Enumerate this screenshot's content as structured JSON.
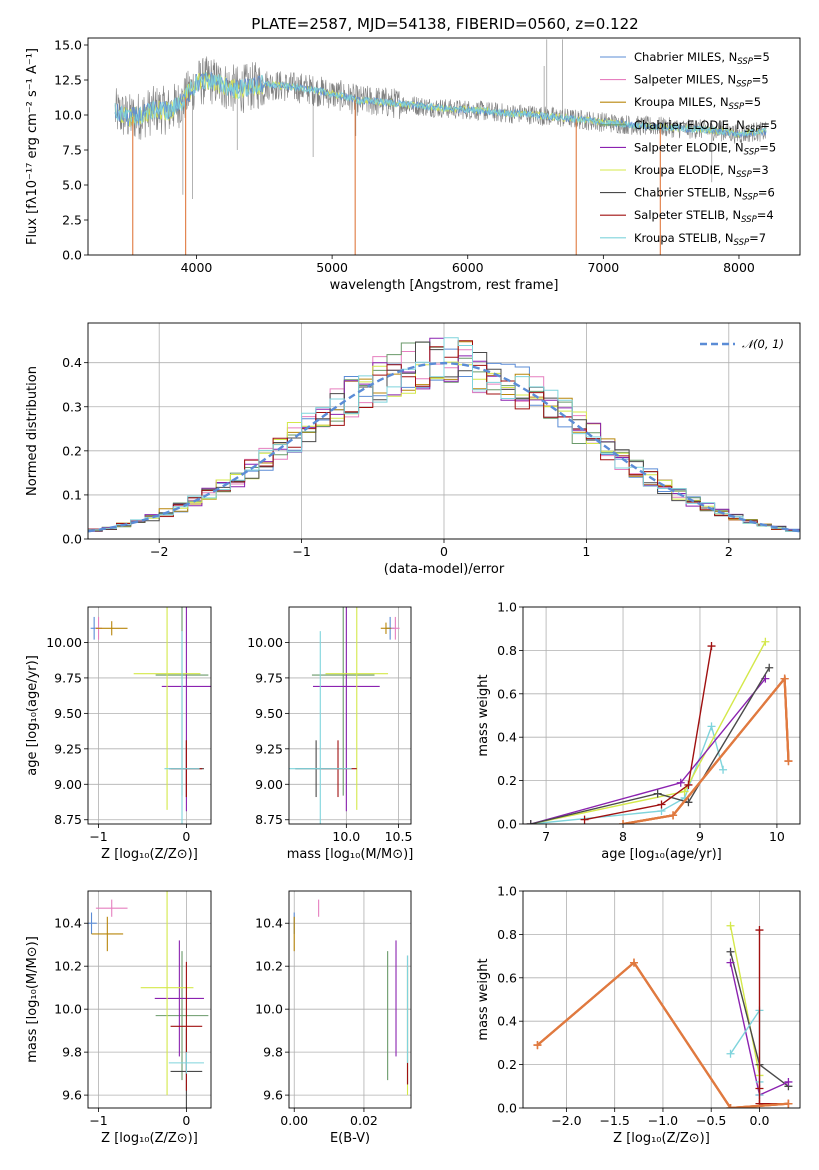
{
  "figure": {
    "title": "PLATE=2587, MJD=54138, FIBERID=0560, z=0.122"
  },
  "colors": {
    "Chabrier MILES": "#5b8cd6",
    "Salpeter MILES": "#e67fbf",
    "Kroupa MILES": "#b8860b",
    "Chabrier ELODIE": "#6a9a6a",
    "Salpeter ELODIE": "#8b22b0",
    "Kroupa ELODIE": "#d4e84a",
    "Chabrier STELIB": "#4a4a4a",
    "Salpeter STELIB": "#a01010",
    "Kroupa STELIB": "#7fd4dc",
    "data": "#808080",
    "orange": "#e07a40",
    "normal": "#5b8cd6"
  },
  "chart_data": [
    {
      "id": "spectrum",
      "type": "line",
      "xlabel": "wavelength [Angstrom, rest frame]",
      "ylabel": "Flux [fλ10⁻¹⁷ erg cm⁻² s⁻¹ A⁻¹]",
      "xlim": [
        3200,
        8450
      ],
      "ylim": [
        0,
        15.5
      ],
      "xticks": [
        4000,
        5000,
        6000,
        7000,
        8000
      ],
      "yticks": [
        0.0,
        2.5,
        5.0,
        7.5,
        10.0,
        12.5,
        15.0
      ],
      "xtick_labels": [
        "4000",
        "5000",
        "6000",
        "7000",
        "8000"
      ],
      "ytick_labels": [
        "0.0",
        "2.5",
        "5.0",
        "7.5",
        "10.0",
        "12.5",
        "15.0"
      ],
      "legend_position": "top-right",
      "legend": [
        {
          "label": "Chabrier MILES, N",
          "sub": "SSP",
          "tail": "=5",
          "color": "#5b8cd6"
        },
        {
          "label": "Salpeter MILES, N",
          "sub": "SSP",
          "tail": "=5",
          "color": "#e67fbf"
        },
        {
          "label": "Kroupa MILES, N",
          "sub": "SSP",
          "tail": "=5",
          "color": "#b8860b"
        },
        {
          "label": "Chabrier ELODIE, N",
          "sub": "SSP",
          "tail": "=5",
          "color": "#6a9a6a"
        },
        {
          "label": "Salpeter ELODIE, N",
          "sub": "SSP",
          "tail": "=5",
          "color": "#8b22b0"
        },
        {
          "label": "Kroupa ELODIE, N",
          "sub": "SSP",
          "tail": "=3",
          "color": "#d4e84a"
        },
        {
          "label": "Chabrier STELIB, N",
          "sub": "SSP",
          "tail": "=6",
          "color": "#4a4a4a"
        },
        {
          "label": "Salpeter STELIB, N",
          "sub": "SSP",
          "tail": "=4",
          "color": "#a01010"
        },
        {
          "label": "Kroupa STELIB, N",
          "sub": "SSP",
          "tail": "=7",
          "color": "#7fd4dc"
        }
      ],
      "continuum": [
        [
          3400,
          10.2
        ],
        [
          3500,
          9.8
        ],
        [
          3600,
          10.0
        ],
        [
          3700,
          10.4
        ],
        [
          3800,
          10.3
        ],
        [
          3900,
          11.0
        ],
        [
          4000,
          12.3
        ],
        [
          4100,
          12.5
        ],
        [
          4200,
          12.1
        ],
        [
          4300,
          11.8
        ],
        [
          4400,
          12.0
        ],
        [
          4500,
          12.2
        ],
        [
          4600,
          12.1
        ],
        [
          4700,
          12.0
        ],
        [
          4800,
          11.9
        ],
        [
          4900,
          11.7
        ],
        [
          5000,
          11.5
        ],
        [
          5100,
          11.3
        ],
        [
          5200,
          11.0
        ],
        [
          5300,
          11.0
        ],
        [
          5400,
          10.9
        ],
        [
          5500,
          10.8
        ],
        [
          5600,
          10.7
        ],
        [
          5700,
          10.6
        ],
        [
          5800,
          10.5
        ],
        [
          5900,
          10.4
        ],
        [
          6000,
          10.4
        ],
        [
          6100,
          10.3
        ],
        [
          6200,
          10.2
        ],
        [
          6300,
          10.1
        ],
        [
          6400,
          10.1
        ],
        [
          6500,
          10.0
        ],
        [
          6600,
          9.9
        ],
        [
          6700,
          9.8
        ],
        [
          6800,
          9.7
        ],
        [
          6900,
          9.6
        ],
        [
          7000,
          9.5
        ],
        [
          7100,
          9.4
        ],
        [
          7200,
          9.3
        ],
        [
          7300,
          9.2
        ],
        [
          7400,
          9.2
        ],
        [
          7500,
          9.1
        ],
        [
          7600,
          9.0
        ],
        [
          7700,
          9.0
        ],
        [
          7800,
          8.9
        ],
        [
          7900,
          8.8
        ],
        [
          8000,
          8.6
        ],
        [
          8100,
          8.8
        ],
        [
          8200,
          8.8
        ]
      ],
      "data_spikes": [
        [
          3900,
          4.3
        ],
        [
          3970,
          4.0
        ],
        [
          4300,
          7.5
        ],
        [
          4860,
          7.0
        ],
        [
          5175,
          8.5
        ],
        [
          6563,
          13.5
        ],
        [
          6583,
          15.4
        ],
        [
          6700,
          15.4
        ],
        [
          7800,
          5.2
        ]
      ],
      "model_dips": [
        [
          3530,
          0.0
        ],
        [
          3920,
          0.0
        ],
        [
          5170,
          0.0
        ],
        [
          6800,
          0.0
        ],
        [
          7420,
          0.0
        ]
      ]
    },
    {
      "id": "residuals",
      "type": "line",
      "xlabel": "(data-model)/error",
      "ylabel": "Normed distribution",
      "xlim": [
        -2.5,
        2.5
      ],
      "ylim": [
        0,
        0.49
      ],
      "xticks": [
        -2,
        -1,
        0,
        1,
        2
      ],
      "yticks": [
        0.0,
        0.1,
        0.2,
        0.3,
        0.4
      ],
      "xtick_labels": [
        "−2",
        "−1",
        "0",
        "1",
        "2"
      ],
      "ytick_labels": [
        "0.0",
        "0.1",
        "0.2",
        "0.3",
        "0.4"
      ],
      "legend_position": "top-right",
      "legend_label": "𝒩(0, 1)",
      "bin_width": 0.1
    },
    {
      "id": "age-vs-Z",
      "type": "scatter",
      "xlabel": "Z [log₁₀(Z/Z⊙)]",
      "ylabel": "age  [log₁₀(age/yr)]",
      "xlim": [
        -1.12,
        0.28
      ],
      "ylim": [
        8.72,
        10.25
      ],
      "xticks": [
        -1,
        0
      ],
      "yticks": [
        8.75,
        9.0,
        9.25,
        9.5,
        9.75,
        10.0
      ],
      "xtick_labels": [
        "−1",
        "0"
      ],
      "ytick_labels": [
        "8.75",
        "9.00",
        "9.25",
        "9.50",
        "9.75",
        "10.00"
      ],
      "points": [
        {
          "name": "Chabrier MILES",
          "x": -1.05,
          "y": 10.1,
          "xerr": 0.04,
          "yerr": 0.08
        },
        {
          "name": "Salpeter MILES",
          "x": -1.0,
          "y": 10.1,
          "xerr": 0.04,
          "yerr": 0.08
        },
        {
          "name": "Kroupa MILES",
          "x": -0.85,
          "y": 10.1,
          "xerr": 0.18,
          "yerr": 0.05
        },
        {
          "name": "Chabrier ELODIE",
          "x": -0.05,
          "y": 9.77,
          "xerr": 0.3,
          "yerr": 0.85
        },
        {
          "name": "Salpeter ELODIE",
          "x": 0.0,
          "y": 9.69,
          "xerr": 0.28,
          "yerr": 0.88
        },
        {
          "name": "Kroupa ELODIE",
          "x": -0.22,
          "y": 9.78,
          "xerr": 0.38,
          "yerr": 0.96
        },
        {
          "name": "Chabrier STELIB",
          "x": 0.0,
          "y": 9.11,
          "xerr": 0.2,
          "yerr": 0.2
        },
        {
          "name": "Salpeter STELIB",
          "x": 0.0,
          "y": 9.11,
          "xerr": 0.18,
          "yerr": 0.2
        },
        {
          "name": "Kroupa STELIB",
          "x": -0.05,
          "y": 9.11,
          "xerr": 0.2,
          "yerr": 0.97
        }
      ]
    },
    {
      "id": "age-vs-mass",
      "type": "scatter",
      "xlabel": "mass [log₁₀(M/M⊙)]",
      "ylabel": "",
      "xlim": [
        9.45,
        10.62
      ],
      "ylim": [
        8.72,
        10.25
      ],
      "xticks": [
        10.0,
        10.5
      ],
      "yticks": [
        8.75,
        9.0,
        9.25,
        9.5,
        9.75,
        10.0
      ],
      "xtick_labels": [
        "10.0",
        "10.5"
      ],
      "ytick_labels": [
        "8.75",
        "9.00",
        "9.25",
        "9.50",
        "9.75",
        "10.00"
      ],
      "points": [
        {
          "name": "Chabrier MILES",
          "x": 10.42,
          "y": 10.1,
          "xerr": 0.04,
          "yerr": 0.08
        },
        {
          "name": "Salpeter MILES",
          "x": 10.47,
          "y": 10.1,
          "xerr": 0.04,
          "yerr": 0.08
        },
        {
          "name": "Kroupa MILES",
          "x": 10.38,
          "y": 10.1,
          "xerr": 0.05,
          "yerr": 0.04
        },
        {
          "name": "Chabrier ELODIE",
          "x": 9.97,
          "y": 9.77,
          "xerr": 0.3,
          "yerr": 0.85
        },
        {
          "name": "Salpeter ELODIE",
          "x": 10.0,
          "y": 9.69,
          "xerr": 0.32,
          "yerr": 0.88
        },
        {
          "name": "Kroupa ELODIE",
          "x": 10.1,
          "y": 9.78,
          "xerr": 0.3,
          "yerr": 0.96
        },
        {
          "name": "Chabrier STELIB",
          "x": 9.71,
          "y": 9.11,
          "xerr": 0.2,
          "yerr": 0.2
        },
        {
          "name": "Salpeter STELIB",
          "x": 9.92,
          "y": 9.11,
          "xerr": 0.18,
          "yerr": 0.2
        },
        {
          "name": "Kroupa STELIB",
          "x": 9.75,
          "y": 9.11,
          "xerr": 0.3,
          "yerr": 0.97
        }
      ]
    },
    {
      "id": "weight-vs-age",
      "type": "line",
      "xlabel": "age  [log₁₀(age/yr)]",
      "ylabel": "mass weight",
      "xlim": [
        6.7,
        10.3
      ],
      "ylim": [
        0,
        1
      ],
      "xticks": [
        7,
        8,
        9,
        10
      ],
      "yticks": [
        0.0,
        0.2,
        0.4,
        0.6,
        0.8,
        1.0
      ],
      "xtick_labels": [
        "7",
        "8",
        "9",
        "10"
      ],
      "ytick_labels": [
        "0.0",
        "0.2",
        "0.4",
        "0.6",
        "0.8",
        "1.0"
      ],
      "series": [
        {
          "name": "Kroupa STELIB",
          "x": [
            6.8,
            8.5,
            8.8,
            9.15,
            9.3
          ],
          "y": [
            0.0,
            0.06,
            0.12,
            0.45,
            0.25
          ]
        },
        {
          "name": "Kroupa ELODIE",
          "x": [
            6.8,
            8.8,
            9.85
          ],
          "y": [
            0.0,
            0.15,
            0.84
          ]
        },
        {
          "name": "Salpeter ELODIE",
          "x": [
            6.8,
            8.75,
            9.85
          ],
          "y": [
            0.0,
            0.19,
            0.67
          ]
        },
        {
          "name": "Chabrier STELIB",
          "x": [
            6.8,
            8.45,
            8.85,
            9.9
          ],
          "y": [
            0.0,
            0.14,
            0.1,
            0.72
          ]
        },
        {
          "name": "Salpeter STELIB",
          "x": [
            7.5,
            8.5,
            8.85,
            9.15
          ],
          "y": [
            0.02,
            0.09,
            0.18,
            0.82
          ]
        },
        {
          "name": "Chabrier MILES",
          "x": [
            8.0,
            8.65,
            10.1,
            10.15
          ],
          "y": [
            0.0,
            0.04,
            0.67,
            0.29
          ]
        },
        {
          "name": "Salpeter MILES",
          "x": [
            8.0,
            8.65,
            10.1,
            10.15
          ],
          "y": [
            0.0,
            0.04,
            0.67,
            0.29
          ]
        },
        {
          "name": "Kroupa MILES",
          "x": [
            8.0,
            8.65,
            10.1,
            10.15
          ],
          "y": [
            0.0,
            0.04,
            0.67,
            0.29
          ]
        }
      ]
    },
    {
      "id": "mass-vs-Z",
      "type": "scatter",
      "xlabel": "Z [log₁₀(Z/Z⊙)]",
      "ylabel": "mass [log₁₀(M/M⊙)]",
      "xlim": [
        -1.12,
        0.28
      ],
      "ylim": [
        9.54,
        10.55
      ],
      "xticks": [
        -1,
        0
      ],
      "yticks": [
        9.6,
        9.8,
        10.0,
        10.2,
        10.4
      ],
      "xtick_labels": [
        "−1",
        "0"
      ],
      "ytick_labels": [
        "9.6",
        "9.8",
        "10.0",
        "10.2",
        "10.4"
      ],
      "points": [
        {
          "name": "Chabrier MILES",
          "x": -1.08,
          "y": 10.4,
          "xerr": 0.06,
          "yerr": 0.05
        },
        {
          "name": "Salpeter MILES",
          "x": -0.85,
          "y": 10.47,
          "xerr": 0.18,
          "yerr": 0.04
        },
        {
          "name": "Kroupa MILES",
          "x": -0.9,
          "y": 10.35,
          "xerr": 0.18,
          "yerr": 0.08
        },
        {
          "name": "Chabrier ELODIE",
          "x": -0.05,
          "y": 9.97,
          "xerr": 0.3,
          "yerr": 0.3
        },
        {
          "name": "Salpeter ELODIE",
          "x": -0.08,
          "y": 10.05,
          "xerr": 0.28,
          "yerr": 0.27
        },
        {
          "name": "Kroupa ELODIE",
          "x": -0.22,
          "y": 10.1,
          "xerr": 0.3,
          "yerr": 0.5
        },
        {
          "name": "Chabrier STELIB",
          "x": 0.0,
          "y": 9.71,
          "xerr": 0.18,
          "yerr": 0.2
        },
        {
          "name": "Salpeter STELIB",
          "x": 0.0,
          "y": 9.92,
          "xerr": 0.18,
          "yerr": 0.3
        },
        {
          "name": "Kroupa STELIB",
          "x": 0.0,
          "y": 9.75,
          "xerr": 0.2,
          "yerr": 0.05
        }
      ]
    },
    {
      "id": "mass-vs-ebv",
      "type": "scatter",
      "xlabel": "E(B-V)",
      "ylabel": "",
      "xlim": [
        -0.0015,
        0.0335
      ],
      "ylim": [
        9.54,
        10.55
      ],
      "xticks": [
        0.0,
        0.02
      ],
      "yticks": [
        9.6,
        9.8,
        10.0,
        10.2,
        10.4
      ],
      "xtick_labels": [
        "0.00",
        "0.02"
      ],
      "ytick_labels": [
        "9.6",
        "9.8",
        "10.0",
        "10.2",
        "10.4"
      ],
      "points": [
        {
          "name": "Chabrier MILES",
          "x": 0.0,
          "y": 10.4,
          "xerr": 0.0,
          "yerr": 0.05
        },
        {
          "name": "Salpeter MILES",
          "x": 0.007,
          "y": 10.47,
          "xerr": 0.0,
          "yerr": 0.04
        },
        {
          "name": "Kroupa MILES",
          "x": 0.0,
          "y": 10.35,
          "xerr": 0.0,
          "yerr": 0.08
        },
        {
          "name": "Chabrier ELODIE",
          "x": 0.0268,
          "y": 9.97,
          "xerr": 0.0,
          "yerr": 0.3
        },
        {
          "name": "Salpeter ELODIE",
          "x": 0.0292,
          "y": 10.05,
          "xerr": 0.0,
          "yerr": 0.27
        },
        {
          "name": "Kroupa ELODIE",
          "x": 0.0325,
          "y": 9.9,
          "xerr": 0.0,
          "yerr": 0.3
        },
        {
          "name": "Chabrier STELIB",
          "x": 0.0325,
          "y": 9.95,
          "xerr": 0.0,
          "yerr": 0.3
        },
        {
          "name": "Salpeter STELIB",
          "x": 0.0325,
          "y": 9.7,
          "xerr": 0.0,
          "yerr": 0.05
        },
        {
          "name": "Kroupa STELIB",
          "x": 0.0325,
          "y": 10.0,
          "xerr": 0.0,
          "yerr": 0.25
        }
      ]
    },
    {
      "id": "weight-vs-Z",
      "type": "line",
      "xlabel": "Z [log₁₀(Z/Z⊙)]",
      "ylabel": "mass weight",
      "xlim": [
        -2.45,
        0.42
      ],
      "ylim": [
        0,
        1
      ],
      "xticks": [
        -2.0,
        -1.5,
        -1.0,
        -0.5,
        0.0
      ],
      "yticks": [
        0.0,
        0.2,
        0.4,
        0.6,
        0.8,
        1.0
      ],
      "xtick_labels": [
        "−2.0",
        "−1.5",
        "−1.0",
        "−0.5",
        "0.0"
      ],
      "ytick_labels": [
        "0.0",
        "0.2",
        "0.4",
        "0.6",
        "0.8",
        "1.0"
      ],
      "series": [
        {
          "name": "Kroupa ELODIE",
          "x": [
            -0.3,
            0.0
          ],
          "y": [
            0.84,
            0.15
          ]
        },
        {
          "name": "Chabrier STELIB",
          "x": [
            -0.3,
            0.0,
            0.3
          ],
          "y": [
            0.72,
            0.2,
            0.1
          ]
        },
        {
          "name": "Salpeter ELODIE",
          "x": [
            -0.3,
            0.0,
            0.3
          ],
          "y": [
            0.67,
            0.06,
            0.12
          ]
        },
        {
          "name": "Kroupa STELIB",
          "x": [
            -0.3,
            0.0,
            0.0,
            0.0
          ],
          "y": [
            0.25,
            0.45,
            0.06,
            0.12
          ]
        },
        {
          "name": "Salpeter STELIB",
          "x": [
            0.0,
            0.0,
            0.0,
            0.3
          ],
          "y": [
            0.82,
            0.09,
            0.02,
            0.02
          ]
        },
        {
          "name": "Chabrier MILES",
          "x": [
            -2.3,
            -1.3,
            -0.3,
            0.3
          ],
          "y": [
            0.29,
            0.67,
            0.0,
            0.02
          ]
        },
        {
          "name": "Salpeter MILES",
          "x": [
            -2.3,
            -1.3,
            -0.3,
            0.3
          ],
          "y": [
            0.29,
            0.67,
            0.0,
            0.02
          ]
        },
        {
          "name": "Kroupa MILES",
          "x": [
            -2.3,
            -1.3,
            -0.3,
            0.3
          ],
          "y": [
            0.29,
            0.67,
            0.0,
            0.02
          ]
        }
      ]
    }
  ]
}
